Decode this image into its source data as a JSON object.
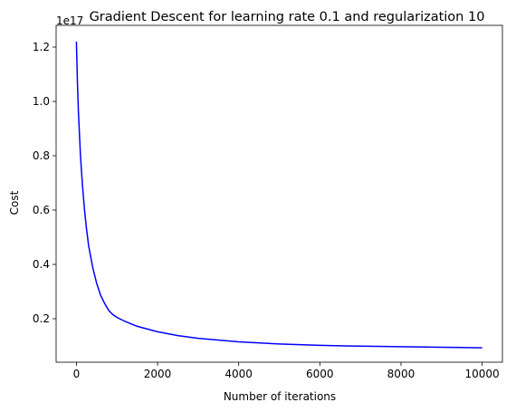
{
  "chart_data": {
    "type": "line",
    "title": "Gradient Descent for learning rate 0.1 and regularization 10",
    "xlabel": "Number of iterations",
    "ylabel": "Cost",
    "offset_label": "1e17",
    "xlim": [
      -500,
      10500
    ],
    "ylim": [
      0.04,
      1.28
    ],
    "xticks": [
      0,
      2000,
      4000,
      6000,
      8000,
      10000
    ],
    "xtick_labels": [
      "0",
      "2000",
      "4000",
      "6000",
      "8000",
      "10000"
    ],
    "yticks": [
      0.2,
      0.4,
      0.6,
      0.8,
      1.0,
      1.2
    ],
    "ytick_labels": [
      "0.2",
      "0.4",
      "0.6",
      "0.8",
      "1.0",
      "1.2"
    ],
    "grid": false,
    "series": [
      {
        "color": "#0000ff",
        "x": [
          0,
          25,
          50,
          100,
          150,
          200,
          250,
          300,
          400,
          500,
          600,
          700,
          800,
          900,
          1000,
          1200,
          1500,
          2000,
          2500,
          3000,
          4000,
          5000,
          6000,
          7000,
          8000,
          9000,
          10000
        ],
        "y": [
          1.22,
          1.07,
          0.96,
          0.8,
          0.69,
          0.6,
          0.53,
          0.47,
          0.39,
          0.33,
          0.285,
          0.255,
          0.23,
          0.215,
          0.205,
          0.19,
          0.172,
          0.152,
          0.138,
          0.128,
          0.115,
          0.107,
          0.102,
          0.099,
          0.097,
          0.095,
          0.093
        ]
      }
    ]
  }
}
